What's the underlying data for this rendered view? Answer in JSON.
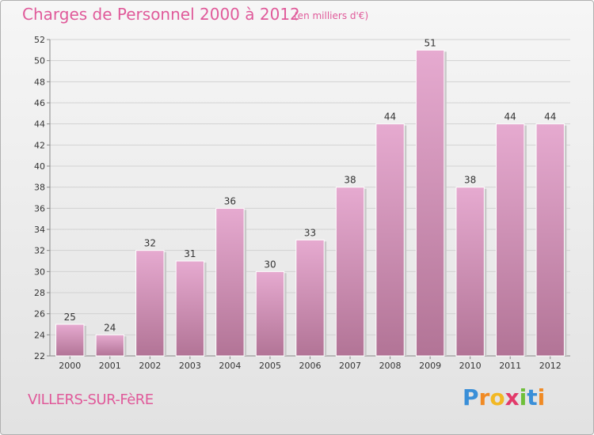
{
  "title": "Charges de Personnel 2000 à 2012",
  "unit_note": "(en milliers d'€)",
  "place_name": "VILLERS-SUR-FèRE",
  "logo": {
    "letters": [
      "P",
      "r",
      "o",
      "x",
      "i",
      "t",
      "i"
    ],
    "colors": [
      "#3a8fd8",
      "#f08a24",
      "#f2b824",
      "#e23a6a",
      "#6fbf3a",
      "#3a8fd8",
      "#f08a24"
    ]
  },
  "colors": {
    "bar_top": "#e6aad0",
    "bar_bottom": "#b27496",
    "accent": "#e05a9a"
  },
  "chart_data": {
    "type": "bar",
    "categories": [
      "2000",
      "2001",
      "2002",
      "2003",
      "2004",
      "2005",
      "2006",
      "2007",
      "2008",
      "2009",
      "2010",
      "2011",
      "2012"
    ],
    "values": [
      25,
      24,
      32,
      31,
      36,
      30,
      33,
      38,
      44,
      51,
      38,
      44,
      44
    ],
    "data_labels": [
      "25",
      "24",
      "32",
      "31",
      "36",
      "30",
      "33",
      "38",
      "44",
      "51",
      "38",
      "44",
      "44"
    ],
    "ylim": [
      22,
      52
    ],
    "yticks": [
      "22",
      "24",
      "26",
      "28",
      "30",
      "32",
      "34",
      "36",
      "38",
      "40",
      "42",
      "44",
      "46",
      "48",
      "50",
      "52"
    ],
    "grid": true,
    "xlabel": "",
    "ylabel": ""
  }
}
